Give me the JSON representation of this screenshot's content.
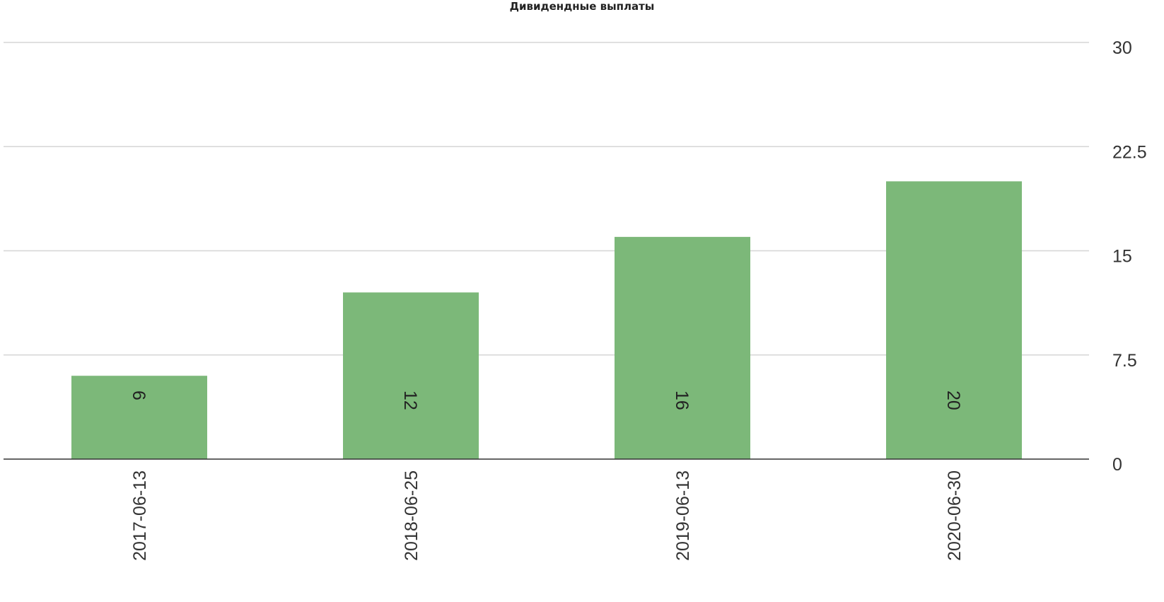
{
  "chart_data": {
    "type": "bar",
    "title": "Дивидендные выплаты",
    "categories": [
      "2017-06-13",
      "2018-06-25",
      "2019-06-13",
      "2020-06-30"
    ],
    "values": [
      6,
      12,
      16,
      20
    ],
    "data_labels": [
      "6",
      "12",
      "16",
      "20"
    ],
    "ylim": [
      0,
      30
    ],
    "yticks": [
      0,
      7.5,
      15,
      22.5,
      30
    ],
    "ytick_labels": [
      "0",
      "7.5",
      "15",
      "22.5",
      "30"
    ],
    "y_axis_side": "right",
    "xtick_rotation": "vertical",
    "grid": true,
    "bar_color": "#7cb879",
    "xlabel": "",
    "ylabel": ""
  }
}
